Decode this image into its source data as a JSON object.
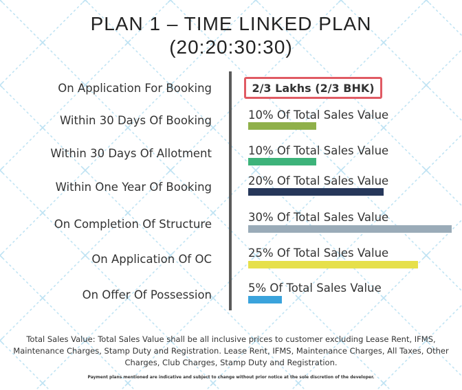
{
  "title_line1": "PLAN 1 – TIME LINKED PLAN",
  "title_line2": "(20:20:30:30)",
  "booking_amount": "2/3 Lakhs (2/3 BHK)",
  "chart_data": {
    "type": "bar",
    "orientation": "horizontal",
    "categories": [
      "Within 30 Days Of Booking",
      "Within 30 Days Of Allotment",
      "Within One Year Of Booking",
      "On Completion Of Structure",
      "On Application Of OC",
      "On Offer Of Possession"
    ],
    "values": [
      10,
      10,
      20,
      30,
      25,
      5
    ],
    "value_labels": [
      "10% Of Total Sales Value",
      "10% Of Total Sales Value",
      "20% Of Total Sales Value",
      "30% Of Total Sales Value",
      "25% Of Total Sales Value",
      "5% Of Total Sales Value"
    ],
    "colors": [
      "#8fb04a",
      "#3db37a",
      "#26375a",
      "#9aabb8",
      "#e6e04b",
      "#3aa3dc"
    ],
    "ylim": [
      0,
      30
    ]
  },
  "rows": [
    {
      "label": "On Application For Booking"
    },
    {
      "label": "Within 30 Days Of Booking"
    },
    {
      "label": "Within 30 Days Of Allotment"
    },
    {
      "label": "Within One Year Of Booking"
    },
    {
      "label": "On Completion Of Structure"
    },
    {
      "label": "On Application Of OC"
    },
    {
      "label": "On Offer Of Possession"
    }
  ],
  "footnote": "Total Sales Value: Total Sales Value shall be all inclusive prices to customer excluding Lease Rent, IFMS, Maintenance Charges, Stamp Duty and Registration. Lease Rent, IFMS, Maintenance Charges, All Taxes, Other Charges, Club Charges, Stamp Duty and Registration.",
  "disclaimer": "Payment plans mentioned are indicative and subject to change without prior notice at the sole discretion of the developer.",
  "colors": {
    "highlight_border": "#e05a63",
    "divider": "#5a5a5a",
    "pattern": "#bfe3f3"
  }
}
